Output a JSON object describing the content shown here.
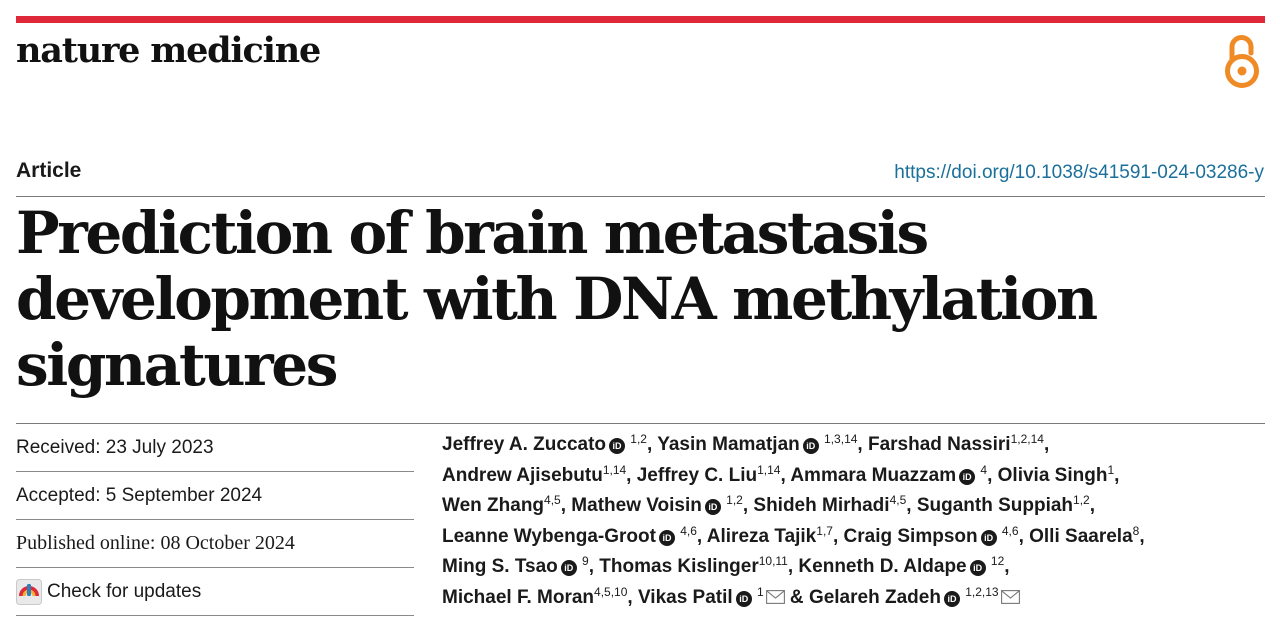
{
  "journal": "nature medicine",
  "article_type": "Article",
  "doi": "https://doi.org/10.1038/s41591-024-03286-y",
  "title": "Prediction of brain metastasis development with DNA methylation signatures",
  "dates": {
    "received": "Received: 23 July 2023",
    "accepted": "Accepted: 5 September 2024",
    "published": "Published online: 08 October 2024"
  },
  "check_updates": "Check for updates",
  "orcid_icon": "iD",
  "authors": [
    {
      "name": "Jeffrey A. Zuccato",
      "sup": "1,2",
      "orcid": true,
      "mail": false,
      "sep": ", "
    },
    {
      "name": "Yasin Mamatjan",
      "sup": "1,3,14",
      "orcid": true,
      "mail": false,
      "sep": ", "
    },
    {
      "name": "Farshad Nassiri",
      "sup": "1,2,14",
      "orcid": false,
      "mail": false,
      "sep": ","
    },
    {
      "name": "Andrew Ajisebutu",
      "sup": "1,14",
      "orcid": false,
      "mail": false,
      "sep": ", "
    },
    {
      "name": "Jeffrey C. Liu",
      "sup": "1,14",
      "orcid": false,
      "mail": false,
      "sep": ", "
    },
    {
      "name": "Ammara Muazzam",
      "sup": "4",
      "orcid": true,
      "mail": false,
      "sep": ", "
    },
    {
      "name": "Olivia Singh",
      "sup": "1",
      "orcid": false,
      "mail": false,
      "sep": ","
    },
    {
      "name": "Wen Zhang",
      "sup": "4,5",
      "orcid": false,
      "mail": false,
      "sep": ", "
    },
    {
      "name": "Mathew Voisin",
      "sup": "1,2",
      "orcid": true,
      "mail": false,
      "sep": ", "
    },
    {
      "name": "Shideh Mirhadi",
      "sup": "4,5",
      "orcid": false,
      "mail": false,
      "sep": ", "
    },
    {
      "name": "Suganth Suppiah",
      "sup": "1,2",
      "orcid": false,
      "mail": false,
      "sep": ","
    },
    {
      "name": "Leanne Wybenga-Groot",
      "sup": "4,6",
      "orcid": true,
      "mail": false,
      "sep": ", "
    },
    {
      "name": "Alireza Tajik",
      "sup": "1,7",
      "orcid": false,
      "mail": false,
      "sep": ", "
    },
    {
      "name": "Craig Simpson",
      "sup": "4,6",
      "orcid": true,
      "mail": false,
      "sep": ", "
    },
    {
      "name": "Olli Saarela",
      "sup": "8",
      "orcid": false,
      "mail": false,
      "sep": ","
    },
    {
      "name": "Ming S. Tsao",
      "sup": "9",
      "orcid": true,
      "mail": false,
      "sep": ", "
    },
    {
      "name": "Thomas Kislinger",
      "sup": "10,11",
      "orcid": false,
      "mail": false,
      "sep": ", "
    },
    {
      "name": "Kenneth D. Aldape",
      "sup": "12",
      "orcid": true,
      "mail": false,
      "sep": ","
    },
    {
      "name": "Michael F. Moran",
      "sup": "4,5,10",
      "orcid": false,
      "mail": false,
      "sep": ", "
    },
    {
      "name": "Vikas Patil",
      "sup": "1",
      "orcid": true,
      "mail": true,
      "sep": " & "
    },
    {
      "name": "Gelareh Zadeh",
      "sup": "1,2,13",
      "orcid": true,
      "mail": true,
      "sep": ""
    }
  ],
  "author_lines": [
    3,
    4,
    4,
    4,
    3,
    3
  ],
  "colors": {
    "accent_bar": "#e0283b",
    "open_access": "#f08a24",
    "doi_link": "#1a6f9b"
  },
  "icons": {
    "open_access": "open-access-lock-icon",
    "updates": "check-for-updates-icon",
    "mail": "mail-envelope-icon"
  }
}
